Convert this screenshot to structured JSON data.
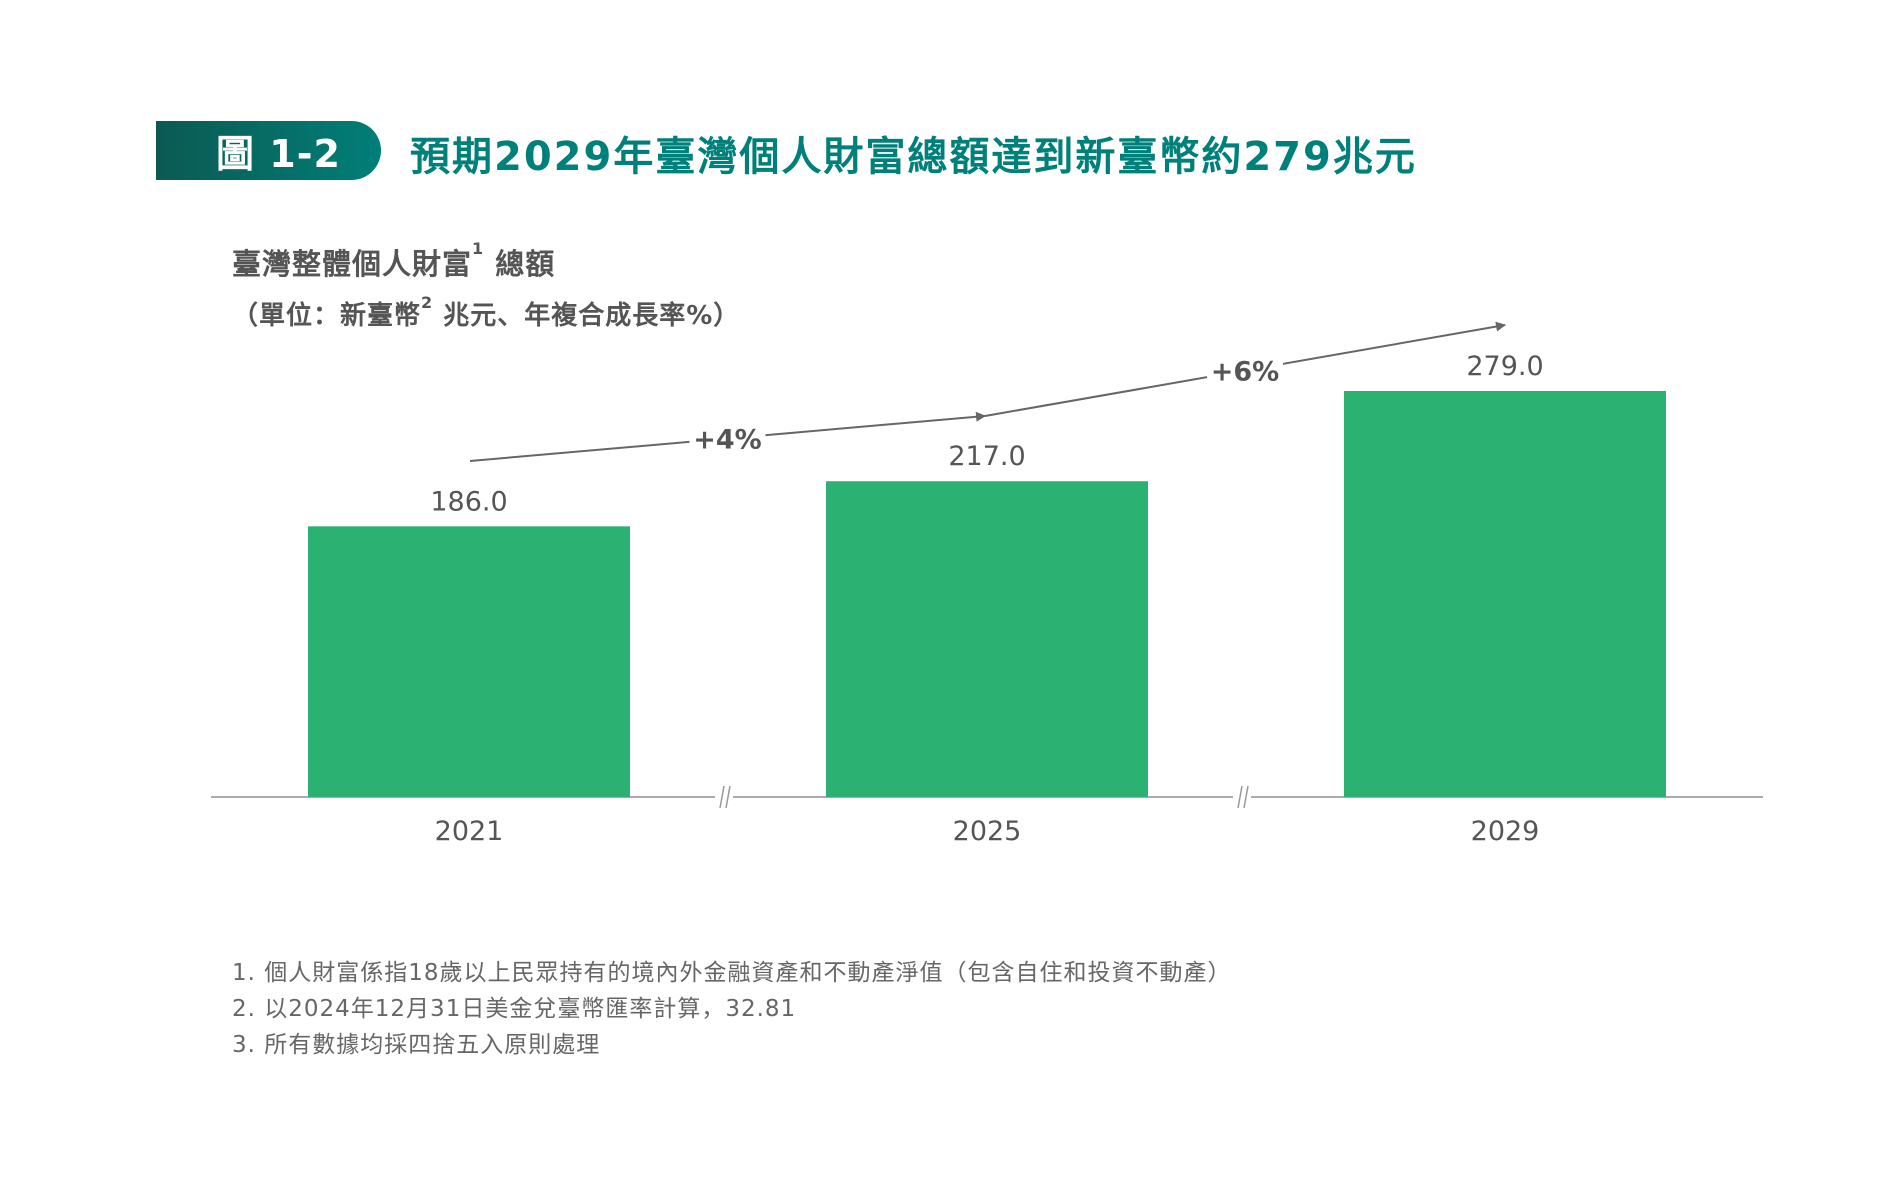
{
  "header": {
    "figure_label": "圖 1-2",
    "title": "預期2029年臺灣個人財富總額達到新臺幣約279兆元"
  },
  "chart_data": {
    "type": "bar",
    "title": "臺灣整體個人財富",
    "title_sup": "1",
    "title_suffix": "總額",
    "unit_prefix": "（單位：新臺幣",
    "unit_sup": "2",
    "unit_suffix": "兆元、年複合成長率%）",
    "categories": [
      "2021",
      "2025",
      "2029"
    ],
    "values": [
      186.0,
      217.0,
      279.0
    ],
    "value_labels": [
      "186.0",
      "217.0",
      "279.0"
    ],
    "ylim": [
      0,
      279
    ],
    "axis_breaks": true,
    "bar_color": "#2bb273",
    "growth": [
      {
        "from": "2021",
        "to": "2025",
        "label": "+4%"
      },
      {
        "from": "2025",
        "to": "2029",
        "label": "+6%"
      }
    ],
    "grid": false
  },
  "footnotes": [
    "1. 個人財富係指18歲以上民眾持有的境內外金融資產和不動產淨值（包含自住和投資不動產）",
    "2. 以2024年12月31日美金兌臺幣匯率計算，32.81",
    "3. 所有數據均採四捨五入原則處理"
  ]
}
